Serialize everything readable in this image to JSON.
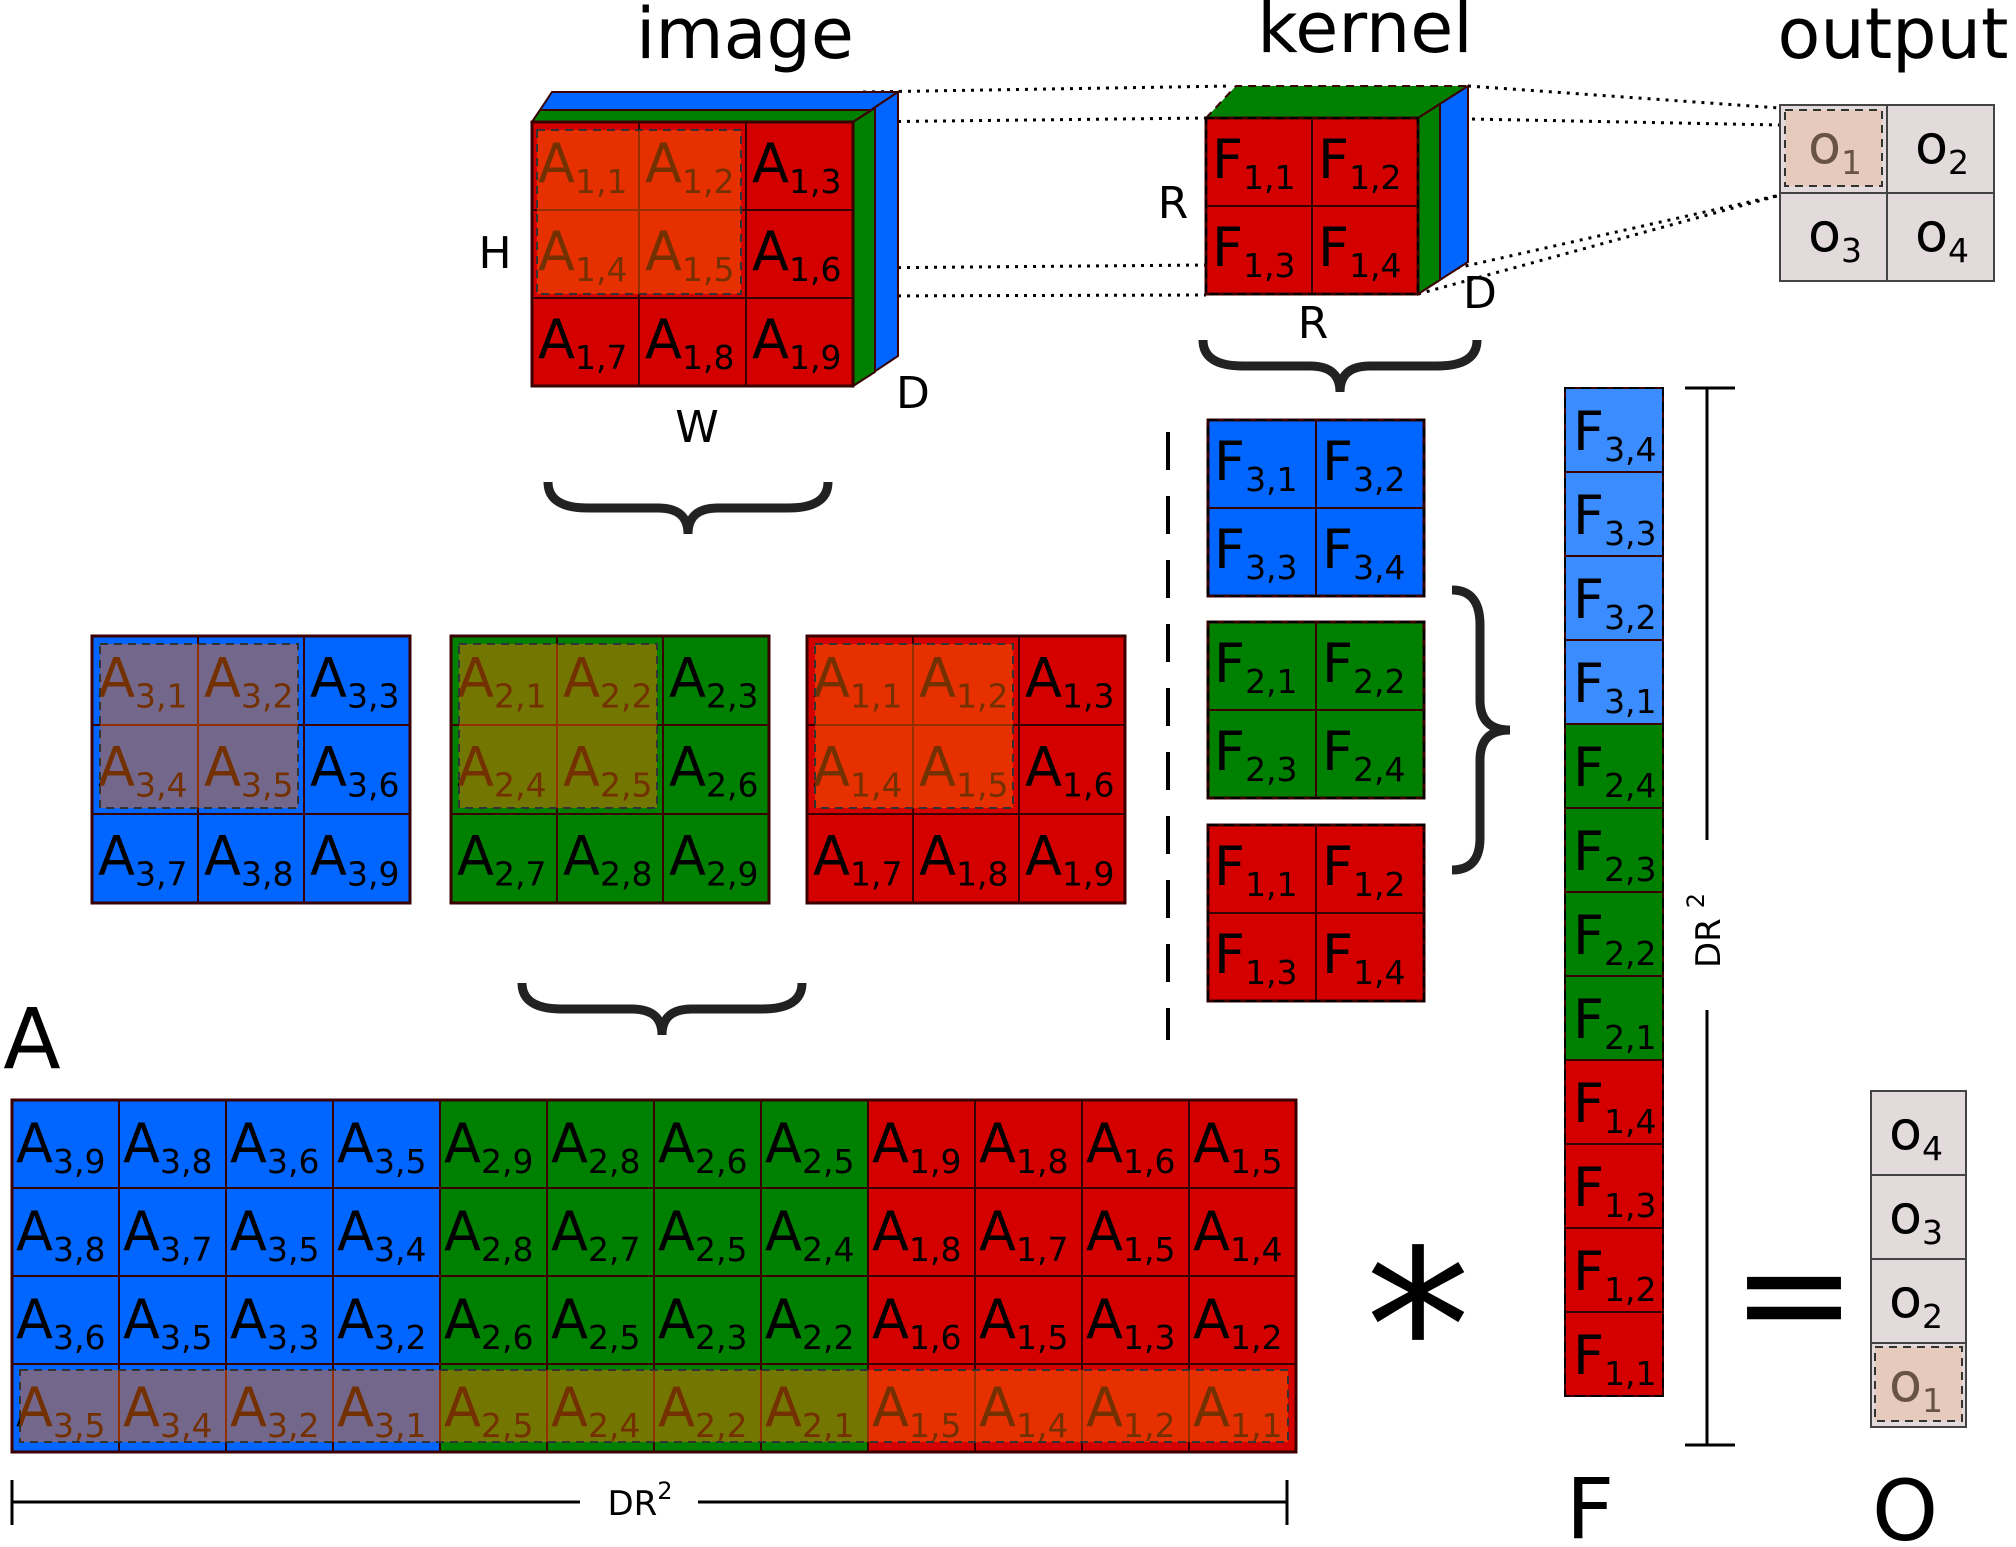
{
  "labels": {
    "image": "image",
    "kernel": "kernel",
    "output": "output",
    "H": "H",
    "W": "W",
    "D": "D",
    "R": "R",
    "A": "A",
    "F": "F",
    "O": "O",
    "DR2": "DR",
    "DR2_exp": "2",
    "times": "*",
    "equals": "="
  },
  "colors": {
    "red": "#d40000",
    "green": "#008000",
    "blue": "#0066ff",
    "light_blue": "#3b8cff",
    "orange_overlay": "#ff6a00",
    "output_bg": "#e3dbdb",
    "output_highlight": "#e9b898",
    "border": "#3a0000"
  },
  "image_cube": {
    "cells": [
      {
        "m": "A",
        "s": "1,1"
      },
      {
        "m": "A",
        "s": "1,2"
      },
      {
        "m": "A",
        "s": "1,3"
      },
      {
        "m": "A",
        "s": "1,4"
      },
      {
        "m": "A",
        "s": "1,5"
      },
      {
        "m": "A",
        "s": "1,6"
      },
      {
        "m": "A",
        "s": "1,7"
      },
      {
        "m": "A",
        "s": "1,8"
      },
      {
        "m": "A",
        "s": "1,9"
      }
    ]
  },
  "kernel_cube": {
    "cells": [
      {
        "m": "F",
        "s": "1,1"
      },
      {
        "m": "F",
        "s": "1,2"
      },
      {
        "m": "F",
        "s": "1,3"
      },
      {
        "m": "F",
        "s": "1,4"
      }
    ]
  },
  "output_grid": {
    "cells": [
      {
        "m": "o",
        "s": "1"
      },
      {
        "m": "o",
        "s": "2"
      },
      {
        "m": "o",
        "s": "3"
      },
      {
        "m": "o",
        "s": "4"
      }
    ]
  },
  "channels": [
    {
      "color": "blue",
      "cells": [
        {
          "m": "A",
          "s": "3,1"
        },
        {
          "m": "A",
          "s": "3,2"
        },
        {
          "m": "A",
          "s": "3,3"
        },
        {
          "m": "A",
          "s": "3,4"
        },
        {
          "m": "A",
          "s": "3,5"
        },
        {
          "m": "A",
          "s": "3,6"
        },
        {
          "m": "A",
          "s": "3,7"
        },
        {
          "m": "A",
          "s": "3,8"
        },
        {
          "m": "A",
          "s": "3,9"
        }
      ]
    },
    {
      "color": "green",
      "cells": [
        {
          "m": "A",
          "s": "2,1"
        },
        {
          "m": "A",
          "s": "2,2"
        },
        {
          "m": "A",
          "s": "2,3"
        },
        {
          "m": "A",
          "s": "2,4"
        },
        {
          "m": "A",
          "s": "2,5"
        },
        {
          "m": "A",
          "s": "2,6"
        },
        {
          "m": "A",
          "s": "2,7"
        },
        {
          "m": "A",
          "s": "2,8"
        },
        {
          "m": "A",
          "s": "2,9"
        }
      ]
    },
    {
      "color": "red",
      "cells": [
        {
          "m": "A",
          "s": "1,1"
        },
        {
          "m": "A",
          "s": "1,2"
        },
        {
          "m": "A",
          "s": "1,3"
        },
        {
          "m": "A",
          "s": "1,4"
        },
        {
          "m": "A",
          "s": "1,5"
        },
        {
          "m": "A",
          "s": "1,6"
        },
        {
          "m": "A",
          "s": "1,7"
        },
        {
          "m": "A",
          "s": "1,8"
        },
        {
          "m": "A",
          "s": "1,9"
        }
      ]
    }
  ],
  "kernel_channels": [
    {
      "color": "blue",
      "cells": [
        {
          "m": "F",
          "s": "3,1"
        },
        {
          "m": "F",
          "s": "3,2"
        },
        {
          "m": "F",
          "s": "3,3"
        },
        {
          "m": "F",
          "s": "3,4"
        }
      ]
    },
    {
      "color": "green",
      "cells": [
        {
          "m": "F",
          "s": "2,1"
        },
        {
          "m": "F",
          "s": "2,2"
        },
        {
          "m": "F",
          "s": "2,3"
        },
        {
          "m": "F",
          "s": "2,4"
        }
      ]
    },
    {
      "color": "red",
      "cells": [
        {
          "m": "F",
          "s": "1,1"
        },
        {
          "m": "F",
          "s": "1,2"
        },
        {
          "m": "F",
          "s": "1,3"
        },
        {
          "m": "F",
          "s": "1,4"
        }
      ]
    }
  ],
  "matrix_A": {
    "rows": [
      [
        "3,9",
        "3,8",
        "3,6",
        "3,5",
        "2,9",
        "2,8",
        "2,6",
        "2,5",
        "1,9",
        "1,8",
        "1,6",
        "1,5"
      ],
      [
        "3,8",
        "3,7",
        "3,5",
        "3,4",
        "2,8",
        "2,7",
        "2,5",
        "2,4",
        "1,8",
        "1,7",
        "1,5",
        "1,4"
      ],
      [
        "3,6",
        "3,5",
        "3,3",
        "3,2",
        "2,6",
        "2,5",
        "2,3",
        "2,2",
        "1,6",
        "1,5",
        "1,3",
        "1,2"
      ],
      [
        "3,5",
        "3,4",
        "3,2",
        "3,1",
        "2,5",
        "2,4",
        "2,2",
        "2,1",
        "1,5",
        "1,4",
        "1,2",
        "1,1"
      ]
    ]
  },
  "vector_F": [
    "3,4",
    "3,3",
    "3,2",
    "3,1",
    "2,4",
    "2,3",
    "2,2",
    "2,1",
    "1,4",
    "1,3",
    "1,2",
    "1,1"
  ],
  "vector_O": [
    "4",
    "3",
    "2",
    "1"
  ]
}
